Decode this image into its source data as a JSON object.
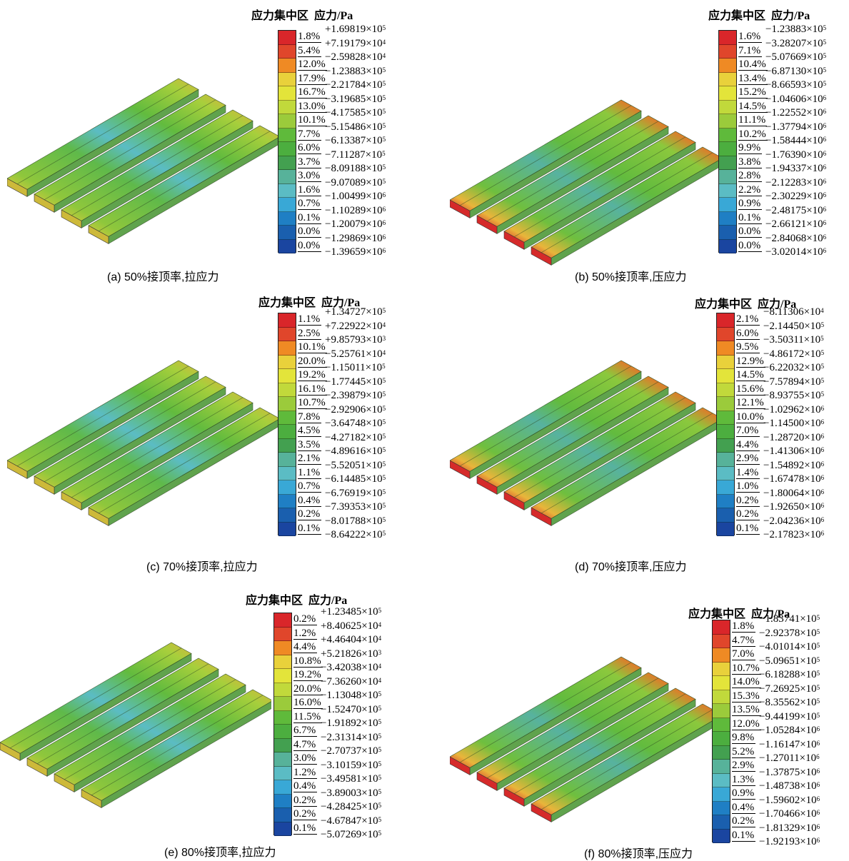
{
  "colors": [
    "#d9262a",
    "#e0462b",
    "#ef8a24",
    "#e9d13b",
    "#e3e43a",
    "#c1d93b",
    "#9bcb3b",
    "#5fba3b",
    "#4cae3f",
    "#43a050",
    "#57b29a",
    "#5bbcc4",
    "#39a8d6",
    "#1f7fc4",
    "#1a5fae",
    "#1a45a0"
  ],
  "panels": [
    {
      "id": "a",
      "caption": "(a) 50%接顶率,拉应力",
      "title_left": "应力集中区",
      "title_right": "应力/Pa",
      "pcts": [
        "1.8%",
        "5.4%",
        "12.0%",
        "17.9%",
        "16.7%",
        "13.0%",
        "10.1%",
        "7.7%",
        "6.0%",
        "3.7%",
        "3.0%",
        "1.6%",
        "0.7%",
        "0.1%",
        "0.0%",
        "0.0%"
      ],
      "vals": [
        [
          "+1.69819×10",
          "5"
        ],
        [
          "+7.19179×10",
          "4"
        ],
        [
          "−2.59828×10",
          "4"
        ],
        [
          "−1.23883×10",
          "5"
        ],
        [
          "−2.21784×10",
          "5"
        ],
        [
          "−3.19685×10",
          "5"
        ],
        [
          "−4.17585×10",
          "5"
        ],
        [
          "−5.15486×10",
          "5"
        ],
        [
          "−6.13387×10",
          "5"
        ],
        [
          "−7.11287×10",
          "5"
        ],
        [
          "−8.09188×10",
          "5"
        ],
        [
          "−9.07089×10",
          "5"
        ],
        [
          "−1.00499×10",
          "6"
        ],
        [
          "−1.10289×10",
          "6"
        ],
        [
          "−1.20079×10",
          "6"
        ],
        [
          "−1.29869×10",
          "6"
        ],
        [
          "−1.39659×10",
          "6"
        ]
      ]
    },
    {
      "id": "b",
      "caption": "(b) 50%接顶率,压应力",
      "title_left": "应力集中区",
      "title_right": "应力/Pa",
      "pcts": [
        "1.6%",
        "7.1%",
        "10.4%",
        "13.4%",
        "15.2%",
        "14.5%",
        "11.1%",
        "10.2%",
        "9.9%",
        "3.8%",
        "2.8%",
        "2.2%",
        "0.9%",
        "0.1%",
        "0.0%",
        "0.0%"
      ],
      "vals": [
        [
          "−1.23883×10",
          "5"
        ],
        [
          "−3.28207×10",
          "5"
        ],
        [
          "−5.07669×10",
          "5"
        ],
        [
          "−6.87130×10",
          "5"
        ],
        [
          "−8.66593×10",
          "5"
        ],
        [
          "−1.04606×10",
          "6"
        ],
        [
          "−1.22552×10",
          "6"
        ],
        [
          "−1.37794×10",
          "6"
        ],
        [
          "−1.58444×10",
          "6"
        ],
        [
          "−1.76390×10",
          "6"
        ],
        [
          "−1.94337×10",
          "6"
        ],
        [
          "−2.12283×10",
          "6"
        ],
        [
          "−2.30229×10",
          "6"
        ],
        [
          "−2.48175×10",
          "6"
        ],
        [
          "−2.66121×10",
          "6"
        ],
        [
          "−2.84068×10",
          "6"
        ],
        [
          "−3.02014×10",
          "6"
        ]
      ]
    },
    {
      "id": "c",
      "caption": "(c) 70%接顶率,拉应力",
      "title_left": "应力集中区",
      "title_right": "应力/Pa",
      "pcts": [
        "1.1%",
        "2.5%",
        "10.1%",
        "20.0%",
        "19.2%",
        "16.1%",
        "10.7%",
        "7.8%",
        "4.5%",
        "3.5%",
        "2.1%",
        "1.1%",
        "0.7%",
        "0.4%",
        "0.2%",
        "0.1%"
      ],
      "vals": [
        [
          "+1.34727×10",
          "5"
        ],
        [
          "+7.22922×10",
          "4"
        ],
        [
          "+9.85793×10",
          "3"
        ],
        [
          "−5.25761×10",
          "4"
        ],
        [
          "−1.15011×10",
          "5"
        ],
        [
          "−1.77445×10",
          "5"
        ],
        [
          "−2.39879×10",
          "5"
        ],
        [
          "−2.92906×10",
          "5"
        ],
        [
          "−3.64748×10",
          "5"
        ],
        [
          "−4.27182×10",
          "5"
        ],
        [
          "−4.89616×10",
          "5"
        ],
        [
          "−5.52051×10",
          "5"
        ],
        [
          "−6.14485×10",
          "5"
        ],
        [
          "−6.76919×10",
          "5"
        ],
        [
          "−7.39353×10",
          "5"
        ],
        [
          "−8.01788×10",
          "5"
        ],
        [
          "−8.64222×10",
          "5"
        ]
      ]
    },
    {
      "id": "d",
      "caption": "(d) 70%接顶率,压应力",
      "title_left": "应力集中区",
      "title_right": "应力/Pa",
      "pcts": [
        "2.1%",
        "6.0%",
        "9.5%",
        "12.9%",
        "14.5%",
        "15.6%",
        "12.1%",
        "10.0%",
        "7.0%",
        "4.4%",
        "2.9%",
        "1.4%",
        "1.0%",
        "0.2%",
        "0.2%",
        "0.1%"
      ],
      "vals": [
        [
          "−8.11306×10",
          "4"
        ],
        [
          "−2.14450×10",
          "5"
        ],
        [
          "−3.50311×10",
          "5"
        ],
        [
          "−4.86172×10",
          "5"
        ],
        [
          "−6.22032×10",
          "5"
        ],
        [
          "−7.57894×10",
          "5"
        ],
        [
          "−8.93755×10",
          "5"
        ],
        [
          "−1.02962×10",
          "6"
        ],
        [
          "−1.14500×10",
          "6"
        ],
        [
          "−1.28720×10",
          "6"
        ],
        [
          "−1.41306×10",
          "6"
        ],
        [
          "−1.54892×10",
          "6"
        ],
        [
          "−1.67478×10",
          "6"
        ],
        [
          "−1.80064×10",
          "6"
        ],
        [
          "−1.92650×10",
          "6"
        ],
        [
          "−2.04236×10",
          "6"
        ],
        [
          "−2.17823×10",
          "6"
        ]
      ]
    },
    {
      "id": "e",
      "caption": "(e) 80%接顶率,拉应力",
      "title_left": "应力集中区",
      "title_right": "应力/Pa",
      "pcts": [
        "0.2%",
        "1.2%",
        "4.4%",
        "10.8%",
        "19.2%",
        "20.0%",
        "16.0%",
        "11.5%",
        "6.7%",
        "4.7%",
        "3.0%",
        "1.2%",
        "0.4%",
        "0.2%",
        "0.2%",
        "0.1%"
      ],
      "vals": [
        [
          "+1.23485×10",
          "5"
        ],
        [
          "+8.40625×10",
          "4"
        ],
        [
          "+4.46404×10",
          "4"
        ],
        [
          "+5.21826×10",
          "3"
        ],
        [
          "−3.42038×10",
          "4"
        ],
        [
          "−7.36260×10",
          "4"
        ],
        [
          "−1.13048×10",
          "5"
        ],
        [
          "−1.52470×10",
          "5"
        ],
        [
          "−1.91892×10",
          "5"
        ],
        [
          "−2.31314×10",
          "5"
        ],
        [
          "−2.70737×10",
          "5"
        ],
        [
          "−3.10159×10",
          "5"
        ],
        [
          "−3.49581×10",
          "5"
        ],
        [
          "−3.89003×10",
          "5"
        ],
        [
          "−4.28425×10",
          "5"
        ],
        [
          "−4.67847×10",
          "5"
        ],
        [
          "−5.07269×10",
          "5"
        ]
      ]
    },
    {
      "id": "f",
      "caption": "(f) 80%接顶率,压应力",
      "title_left": "应力集中区",
      "title_right": "应力/Pa",
      "pcts": [
        "1.8%",
        "4.7%",
        "7.0%",
        "10.7%",
        "14.0%",
        "15.3%",
        "13.5%",
        "12.0%",
        "9.8%",
        "5.2%",
        "2.9%",
        "1.3%",
        "0.9%",
        "0.4%",
        "0.2%",
        "0.1%"
      ],
      "vals": [
        [
          "−1.83741×10",
          "5"
        ],
        [
          "−2.92378×10",
          "5"
        ],
        [
          "−4.01014×10",
          "5"
        ],
        [
          "−5.09651×10",
          "5"
        ],
        [
          "−6.18288×10",
          "5"
        ],
        [
          "−7.26925×10",
          "5"
        ],
        [
          "−8.35562×10",
          "5"
        ],
        [
          "−9.44199×10",
          "5"
        ],
        [
          "−1.05284×10",
          "6"
        ],
        [
          "−1.16147×10",
          "6"
        ],
        [
          "−1.27011×10",
          "6"
        ],
        [
          "−1.37875×10",
          "6"
        ],
        [
          "−1.48738×10",
          "6"
        ],
        [
          "−1.59602×10",
          "6"
        ],
        [
          "−1.70466×10",
          "6"
        ],
        [
          "−1.81329×10",
          "6"
        ],
        [
          "−1.92193×10",
          "6"
        ]
      ]
    }
  ]
}
